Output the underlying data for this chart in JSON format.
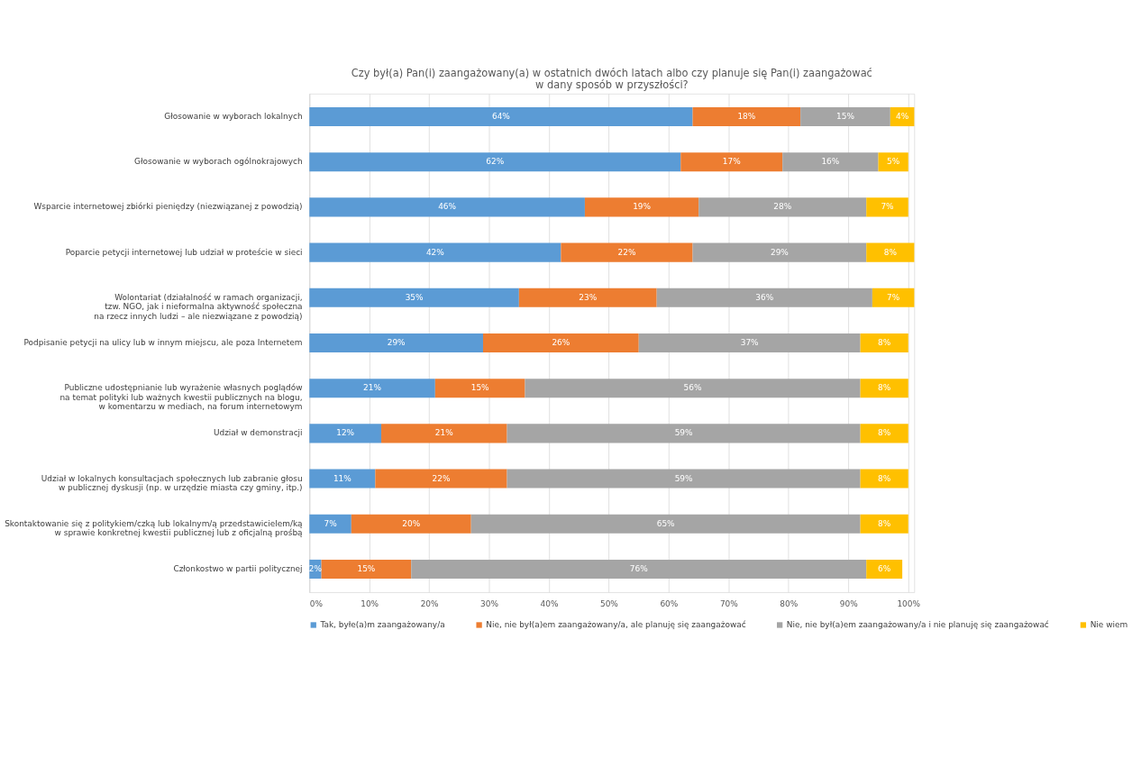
{
  "chart_data": {
    "type": "bar",
    "orientation": "horizontal",
    "stacked": true,
    "title": "Czy był(a) Pan(i) zaangażowany(a) w ostatnich dwóch latach albo czy planuje się Pan(i) zaangażować\nw dany sposób w przyszłości?",
    "categories": [
      "Głosowanie w wyborach lokalnych",
      "Głosowanie w wyborach ogólnokrajowych",
      "Wsparcie internetowej zbiórki pieniędzy (niezwiązanej z powodzią)",
      "Poparcie petycji internetowej lub udział w proteście w sieci",
      "Wolontariat (działalność w ramach organizacji,\ntzw. NGO, jak i nieformalna aktywność społeczna\nna rzecz innych ludzi – ale niezwiązane z powodzią)",
      "Podpisanie petycji na ulicy lub w innym miejscu, ale poza Internetem",
      "Publiczne udostępnianie lub wyrażenie własnych poglądów\nna temat polityki lub ważnych kwestii publicznych na blogu,\nw komentarzu w mediach, na forum internetowym",
      "Udział w demonstracji",
      "Udział w lokalnych konsultacjach społecznych lub zabranie głosu\nw publicznej dyskusji (np. w urzędzie miasta czy gminy, itp.)",
      "Skontaktowanie się z politykiem/czką lub lokalnym/ą przedstawicielem/ką\nw sprawie konkretnej kwestii publicznej lub z oficjalną prośbą",
      "Członkostwo w partii politycznej"
    ],
    "series": [
      {
        "name": "Tak, byłe(a)m zaangażowany/a",
        "color": "#5b9bd5",
        "values": [
          64,
          62,
          46,
          42,
          35,
          29,
          21,
          12,
          11,
          7,
          2
        ],
        "value_labels": [
          "64%",
          "62%",
          "46%",
          "42%",
          "35%",
          "29%",
          "21%",
          "12%",
          "11%",
          "7%",
          "2%"
        ]
      },
      {
        "name": "Nie, nie był(a)em zaangażowany/a, ale planuję się zaangażować",
        "color": "#ed7d31",
        "values": [
          18,
          17,
          19,
          22,
          23,
          26,
          15,
          21,
          22,
          20,
          15
        ],
        "value_labels": [
          "18%",
          "17%",
          "19%",
          "22%",
          "23%",
          "26%",
          "15%",
          "21%",
          "22%",
          "20%",
          "15%"
        ]
      },
      {
        "name": "Nie, nie był(a)em zaangażowany/a i nie planuję się zaangażować",
        "color": "#a5a5a5",
        "values": [
          15,
          16,
          28,
          29,
          36,
          37,
          56,
          59,
          59,
          65,
          76
        ],
        "value_labels": [
          "15%",
          "16%",
          "28%",
          "29%",
          "36%",
          "37%",
          "56%",
          "59%",
          "59%",
          "65%",
          "76%"
        ]
      },
      {
        "name": "Nie wiem",
        "color": "#ffc000",
        "values": [
          4,
          5,
          7,
          8,
          7,
          8,
          8,
          8,
          8,
          8,
          6
        ],
        "value_labels": [
          "4%",
          "5%",
          "7%",
          "8%",
          "7%",
          "8%",
          "8%",
          "8%",
          "8%",
          "8%",
          "6%"
        ]
      }
    ],
    "xlim": [
      0,
      101
    ],
    "xticks": [
      {
        "value": 0,
        "label": "0%"
      },
      {
        "value": 10,
        "label": "10%"
      },
      {
        "value": 20,
        "label": "20%"
      },
      {
        "value": 30,
        "label": "30%"
      },
      {
        "value": 40,
        "label": "40%"
      },
      {
        "value": 50,
        "label": "50%"
      },
      {
        "value": 60,
        "label": "60%"
      },
      {
        "value": 70,
        "label": "70%"
      },
      {
        "value": 80,
        "label": "80%"
      },
      {
        "value": 90,
        "label": "90%"
      },
      {
        "value": 100,
        "label": "100%"
      }
    ],
    "grid": "x",
    "legend": "bottom"
  }
}
